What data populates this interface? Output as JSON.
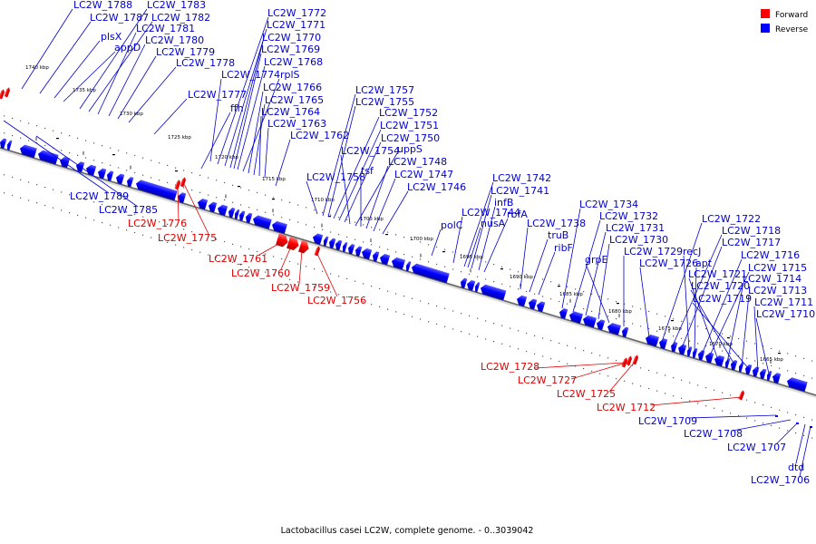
{
  "colors": {
    "forward": "#ff0000",
    "reverse": "#0000ff",
    "backbone_dark": "#555555",
    "backbone_light": "#bbbbbb",
    "label_forward": "#dd0000",
    "label_reverse": "#0000cc"
  },
  "legend": [
    {
      "label": "Forward",
      "color": "#ff0000"
    },
    {
      "label": "Reverse",
      "color": "#0000ff"
    }
  ],
  "caption": "Lactobacillus casei LC2W, complete genome. - 0..3039042",
  "kbp_ticks": [
    "1740 kbp",
    "1735 kbp",
    "1730 kbp",
    "1725 kbp",
    "1720 kbp",
    "1715 kbp",
    "1710 kbp",
    "1705 kbp",
    "1700 kbp",
    "1695 kbp",
    "1690 kbp",
    "1685 kbp",
    "1680 kbp",
    "1675 kbp",
    "1670 kbp",
    "1665 kbp"
  ],
  "reverse_labels_top": [
    "LC2W_1788",
    "LC2W_1787",
    "plsX",
    "appD",
    "LC2W_1783",
    "LC2W_1782",
    "LC2W_1781",
    "LC2W_1780",
    "LC2W_1779",
    "LC2W_1778",
    "LC2W_1777",
    "ffh",
    "LC2W_1774",
    "LC2W_1772",
    "LC2W_1771",
    "LC2W_1770",
    "LC2W_1769",
    "LC2W_1768",
    "rplS",
    "LC2W_1766",
    "LC2W_1765",
    "LC2W_1764",
    "LC2W_1763",
    "LC2W_1762",
    "LC2W_1758",
    "LC2W_1757",
    "LC2W_1755",
    "LC2W_1752",
    "LC2W_1751",
    "LC2W_1750",
    "LC2W_1754",
    "uppS",
    "tsf",
    "LC2W_1748",
    "LC2W_1747",
    "LC2W_1746",
    "LC2W_1742",
    "LC2W_1741",
    "infB",
    "rbfA",
    "LC2W_1744",
    "nusA",
    "LC2W_1738",
    "polC",
    "truB",
    "ribF",
    "LC2W_1734",
    "LC2W_1732",
    "LC2W_1731",
    "LC2W_1730",
    "grpE",
    "LC2W_1729",
    "LC2W_1726",
    "LC2W_1722",
    "LC2W_1718",
    "LC2W_1717",
    "recJ",
    "apt",
    "LC2W_1716",
    "LC2W_1715",
    "LC2W_1721",
    "LC2W_1714",
    "LC2W_1720",
    "LC2W_1713",
    "LC2W_1719",
    "LC2W_1711",
    "LC2W_1710"
  ],
  "reverse_labels_bottom": [
    "LC2W_1789",
    "LC2W_1785",
    "LC2W_1709",
    "LC2W_1708",
    "LC2W_1707",
    "dtd",
    "LC2W_1706"
  ],
  "forward_labels": [
    "LC2W_1776",
    "LC2W_1775",
    "LC2W_1761",
    "LC2W_1760",
    "LC2W_1759",
    "LC2W_1756",
    "LC2W_1728",
    "LC2W_1727",
    "LC2W_1725",
    "LC2W_1712"
  ]
}
